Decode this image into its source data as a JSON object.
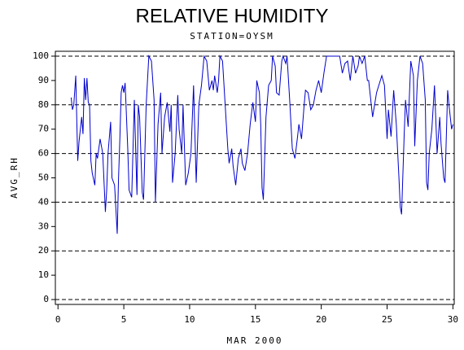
{
  "chart_data": {
    "type": "line",
    "title": "RELATIVE HUMIDITY",
    "subtitle": "STATION=OYSM",
    "ylabel": "AVG_RH",
    "xlabel": "MAR 2000",
    "xlim": [
      -0.2,
      30.1
    ],
    "xticks": [
      0,
      5,
      10,
      15,
      20,
      25,
      30
    ],
    "ylim": [
      -2,
      102
    ],
    "yticks": [
      0,
      10,
      20,
      30,
      40,
      50,
      60,
      70,
      80,
      90,
      100
    ],
    "gridlines": [
      0,
      20,
      40,
      60,
      80,
      100
    ],
    "series": [
      {
        "name": "AVG_RH",
        "color": "#0000cc",
        "x": [
          1.0,
          1.1,
          1.2,
          1.35,
          1.5,
          1.6,
          1.8,
          1.9,
          2.0,
          2.1,
          2.2,
          2.3,
          2.4,
          2.5,
          2.6,
          2.8,
          2.9,
          3.0,
          3.2,
          3.4,
          3.6,
          3.7,
          3.8,
          4.0,
          4.1,
          4.3,
          4.5,
          4.6,
          4.7,
          4.8,
          4.9,
          5.0,
          5.1,
          5.3,
          5.4,
          5.6,
          5.8,
          5.9,
          6.0,
          6.1,
          6.2,
          6.4,
          6.5,
          6.7,
          6.9,
          7.1,
          7.3,
          7.4,
          7.6,
          7.8,
          7.9,
          8.1,
          8.3,
          8.5,
          8.6,
          8.7,
          8.9,
          9.1,
          9.2,
          9.4,
          9.5,
          9.7,
          9.9,
          10.1,
          10.3,
          10.5,
          10.7,
          10.9,
          11.1,
          11.3,
          11.5,
          11.7,
          11.8,
          11.9,
          12.1,
          12.2,
          12.3,
          12.5,
          12.7,
          12.9,
          13.0,
          13.2,
          13.3,
          13.5,
          13.7,
          13.9,
          14.0,
          14.2,
          14.4,
          14.6,
          14.8,
          15.0,
          15.1,
          15.3,
          15.4,
          15.5,
          15.6,
          15.8,
          16.0,
          16.2,
          16.3,
          16.5,
          16.6,
          16.8,
          17.0,
          17.1,
          17.3,
          17.4,
          17.6,
          17.8,
          18.0,
          18.2,
          18.3,
          18.5,
          18.7,
          18.8,
          19.0,
          19.2,
          19.4,
          19.6,
          19.8,
          20.0,
          20.2,
          20.4,
          20.6,
          20.8,
          21.0,
          21.2,
          21.4,
          21.6,
          21.8,
          22.0,
          22.2,
          22.4,
          22.6,
          22.8,
          22.9,
          23.1,
          23.3,
          23.5,
          23.6,
          23.8,
          23.9,
          24.2,
          24.6,
          24.8,
          25.0,
          25.1,
          25.3,
          25.5,
          25.7,
          25.9,
          26.0,
          26.1,
          26.3,
          26.4,
          26.6,
          26.8,
          27.0,
          27.1,
          27.3,
          27.5,
          27.7,
          27.9,
          28.0,
          28.1,
          28.2,
          28.4,
          28.6,
          28.8,
          29.0,
          29.1,
          29.3,
          29.4,
          29.6,
          29.7,
          29.9,
          30.0
        ],
        "values": [
          83,
          78,
          80,
          92,
          57,
          65,
          75,
          68,
          91,
          82,
          91,
          81,
          80,
          57,
          52,
          47,
          60,
          58,
          66,
          60,
          36,
          45,
          60,
          73,
          50,
          47,
          27,
          50,
          66,
          85,
          88,
          85,
          89,
          62,
          45,
          42,
          82,
          62,
          43,
          80,
          75,
          44,
          41,
          80,
          100,
          98,
          82,
          40,
          72,
          85,
          60,
          75,
          81,
          69,
          80,
          48,
          60,
          84,
          70,
          60,
          80,
          47,
          52,
          60,
          88,
          48,
          80,
          88,
          100,
          98,
          86,
          90,
          86,
          92,
          85,
          90,
          100,
          98,
          80,
          62,
          56,
          62,
          55,
          47,
          58,
          62,
          56,
          53,
          60,
          72,
          81,
          73,
          90,
          85,
          72,
          46,
          41,
          75,
          88,
          90,
          100,
          96,
          85,
          84,
          98,
          100,
          97,
          100,
          82,
          62,
          58,
          67,
          72,
          66,
          80,
          86,
          85,
          78,
          80,
          86,
          90,
          85,
          93,
          100,
          100,
          100,
          100,
          100,
          100,
          93,
          97,
          98,
          90,
          100,
          93,
          96,
          100,
          97,
          100,
          90,
          90,
          80,
          75,
          85,
          92,
          88,
          66,
          78,
          67,
          86,
          72,
          50,
          38,
          35,
          68,
          82,
          71,
          98,
          92,
          63,
          90,
          100,
          97,
          82,
          48,
          45,
          60,
          70,
          88,
          60,
          75,
          64,
          50,
          48,
          86,
          80,
          70,
          72
        ]
      }
    ]
  }
}
